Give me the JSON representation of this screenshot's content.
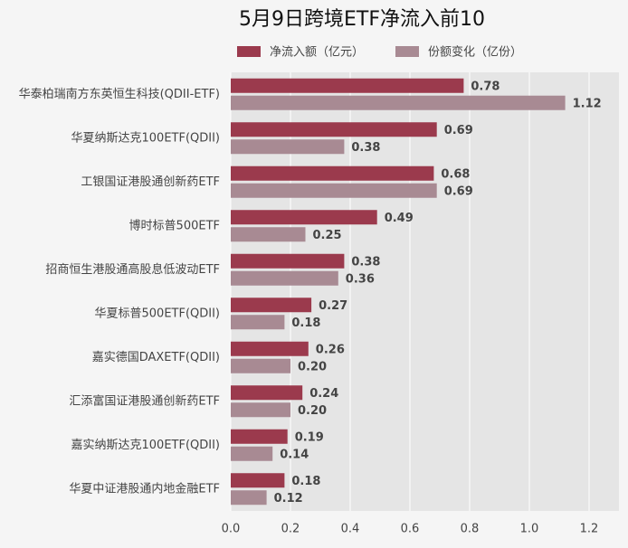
{
  "chart_data": {
    "type": "barh",
    "title": "5月9日跨境ETF净流入前10",
    "categories": [
      "华泰柏瑞南方东英恒生科技(QDII-ETF)",
      "华夏纳斯达克100ETF(QDII)",
      "工银国证港股通创新药ETF",
      "博时标普500ETF",
      "招商恒生港股通高股息低波动ETF",
      "华夏标普500ETF(QDII)",
      "嘉实德国DAXETF(QDII)",
      "汇添富国证港股通创新药ETF",
      "嘉实纳斯达克100ETF(QDII)",
      "华夏中证港股通内地金融ETF"
    ],
    "series": [
      {
        "name": "净流入额（亿元）",
        "color": "#9b3a4d",
        "values": [
          0.78,
          0.69,
          0.68,
          0.49,
          0.38,
          0.27,
          0.26,
          0.24,
          0.19,
          0.18
        ]
      },
      {
        "name": "份额变化（亿份）",
        "color": "#a88a93",
        "values": [
          1.12,
          0.38,
          0.69,
          0.25,
          0.36,
          0.18,
          0.2,
          0.2,
          0.14,
          0.12
        ],
        "value_labels": [
          "1.12",
          "0.38",
          "0.69",
          "0.25",
          "0.36",
          "0.18",
          "0.20",
          "0.20",
          "0.14",
          "0.12"
        ]
      }
    ],
    "xlim": [
      0,
      1.3
    ],
    "xticks": [
      {
        "value": 0,
        "label": "0.0"
      },
      0.2,
      0.4,
      0.6,
      0.8,
      {
        "value": 1,
        "label": "1.0"
      },
      1.2
    ],
    "grid": true
  }
}
